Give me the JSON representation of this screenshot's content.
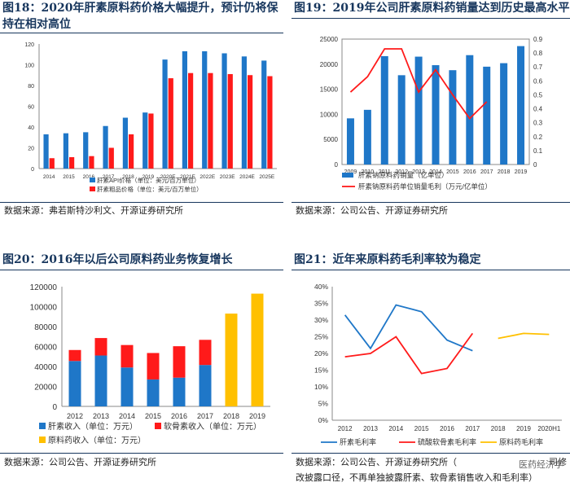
{
  "colors": {
    "blue": "#1f77c8",
    "red": "#ff1a1a",
    "yellow": "#ffc000",
    "title": "#17365d"
  },
  "panels": {
    "p18": {
      "title": "图18：2020年肝素原料药价格大幅提升，预计仍将保持在相对高位",
      "source": "数据来源：弗若斯特沙利文、开源证券研究所"
    },
    "p19": {
      "title": "图19：2019年公司肝素原料药销量达到历史最高水平",
      "source": "数据来源：公司公告、开源证券研究所"
    },
    "p20": {
      "title": "图20：2016年以后公司原料药业务恢复增长",
      "source": "数据来源：公司公告、开源证券研究所"
    },
    "p21": {
      "title": "图21：近年来原料药毛利率较为稳定",
      "source": "数据来源：公司公告、开源证券研究所（",
      "source_cont": "改披露口径，不再单独披露肝素、软骨素销售收入和毛利率）",
      "source_tail": "司修"
    }
  },
  "watermark": "医药经济学",
  "chart_data": [
    {
      "id": "c18",
      "type": "bar",
      "categories": [
        "2014",
        "2015",
        "2016",
        "2017",
        "2018",
        "2019",
        "2020E",
        "2021E",
        "2022E",
        "2023E",
        "2024E",
        "2025E"
      ],
      "series": [
        {
          "name": "肝素API价格（单位：美元/百万单位）",
          "color": "#1f77c8",
          "values": [
            33,
            34,
            35,
            41,
            49,
            54,
            105,
            113,
            113,
            111,
            108,
            104
          ]
        },
        {
          "name": "肝素粗品价格（单位：美元/百万单位）",
          "color": "#ff1a1a",
          "values": [
            10,
            11,
            12,
            20,
            33,
            53,
            87,
            92,
            92,
            91,
            90,
            89
          ]
        }
      ],
      "ylim": [
        0,
        120
      ],
      "yticks": [
        0,
        20,
        40,
        60,
        80,
        100,
        120
      ]
    },
    {
      "id": "c19",
      "type": "bar+line",
      "categories": [
        "2009",
        "2010",
        "2011",
        "2012",
        "2013",
        "2014",
        "2015",
        "2016",
        "2017",
        "2018",
        "2019"
      ],
      "series": [
        {
          "name": "肝素钠原料药销量（亿单位）",
          "type": "bar",
          "axis": "left",
          "color": "#1f77c8",
          "values": [
            9200,
            10900,
            21600,
            17800,
            21500,
            19800,
            18800,
            21800,
            19500,
            20200,
            23600
          ]
        },
        {
          "name": "肝素钠原料药单位销量毛利（万元/亿单位）",
          "type": "line",
          "axis": "right",
          "color": "#ff1a1a",
          "values": [
            0.52,
            0.63,
            0.83,
            0.83,
            0.52,
            0.68,
            0.5,
            0.33,
            0.45,
            null,
            null
          ]
        }
      ],
      "ylim": [
        0,
        25000
      ],
      "yticks": [
        0,
        5000,
        10000,
        15000,
        20000,
        25000
      ],
      "y2lim": [
        0,
        0.9
      ],
      "y2ticks": [
        "0",
        "0.1",
        "0.2",
        "0.3",
        "0.4",
        "0.5",
        "0.6",
        "0.7",
        "0.8",
        "0.9"
      ]
    },
    {
      "id": "c20",
      "type": "stacked-bar",
      "categories": [
        "2012",
        "2013",
        "2014",
        "2015",
        "2016",
        "2017",
        "2018",
        "2019"
      ],
      "series": [
        {
          "name": "肝素收入（单位：万元）",
          "color": "#1f77c8",
          "values": [
            45500,
            51000,
            39000,
            27000,
            28800,
            41500,
            null,
            null
          ]
        },
        {
          "name": "软骨素收入（单位：万元）",
          "color": "#ff1a1a",
          "values": [
            11000,
            17500,
            22500,
            26500,
            31500,
            25200,
            null,
            null
          ]
        },
        {
          "name": "原料药收入（单位：万元）",
          "color": "#ffc000",
          "values": [
            null,
            null,
            null,
            null,
            null,
            null,
            93000,
            113000
          ]
        }
      ],
      "ylim": [
        0,
        120000
      ],
      "yticks": [
        "0",
        "20000",
        "40000",
        "60000",
        "80000",
        "100000",
        "120000"
      ]
    },
    {
      "id": "c21",
      "type": "line",
      "categories": [
        "2012",
        "2013",
        "2014",
        "2015",
        "2016",
        "2017",
        "2018",
        "2019",
        "2020H1"
      ],
      "series": [
        {
          "name": "肝素毛利率",
          "color": "#1f77c8",
          "values": [
            0.315,
            0.215,
            0.345,
            0.325,
            0.24,
            0.208,
            null,
            null,
            null
          ]
        },
        {
          "name": "硫酸软骨素毛利率",
          "color": "#ff1a1a",
          "values": [
            0.19,
            0.2,
            0.25,
            0.14,
            0.155,
            0.26,
            null,
            null,
            null
          ]
        },
        {
          "name": "原料药毛利率",
          "color": "#ffc000",
          "values": [
            null,
            null,
            null,
            null,
            null,
            null,
            0.245,
            0.26,
            0.257
          ]
        }
      ],
      "ylim": [
        0,
        0.4
      ],
      "yticks": [
        "0%",
        "5%",
        "10%",
        "15%",
        "20%",
        "25%",
        "30%",
        "35%",
        "40%"
      ]
    }
  ]
}
